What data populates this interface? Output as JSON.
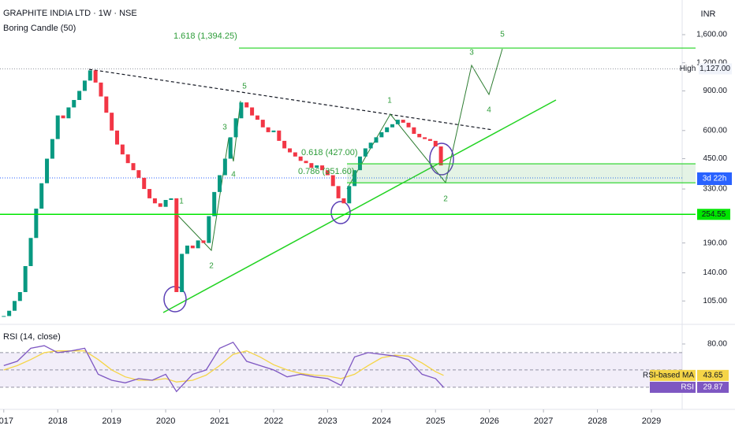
{
  "chart_data": [
    {
      "type": "candlestick",
      "title": "GRAPHITE INDIA LTD · 1W · NSE",
      "subtitle": "Boring Candle (50)",
      "currency": "INR",
      "up_color": "#089981",
      "down_color": "#f23645",
      "log": true,
      "x": [
        2017.0,
        2017.1,
        2017.2,
        2017.3,
        2017.4,
        2017.5,
        2017.6,
        2017.7,
        2017.8,
        2017.9,
        2018.0,
        2018.1,
        2018.2,
        2018.3,
        2018.4,
        2018.5,
        2018.6,
        2018.7,
        2018.8,
        2018.9,
        2019.0,
        2019.1,
        2019.2,
        2019.3,
        2019.4,
        2019.5,
        2019.6,
        2019.7,
        2019.8,
        2019.9,
        2020.0,
        2020.1,
        2020.2,
        2020.3,
        2020.4,
        2020.5,
        2020.6,
        2020.7,
        2020.8,
        2020.9,
        2021.0,
        2021.1,
        2021.2,
        2021.3,
        2021.4,
        2021.5,
        2021.6,
        2021.7,
        2021.8,
        2021.9,
        2022.0,
        2022.1,
        2022.2,
        2022.3,
        2022.4,
        2022.5,
        2022.6,
        2022.7,
        2022.8,
        2022.9,
        2023.0,
        2023.1,
        2023.2,
        2023.3,
        2023.4,
        2023.5,
        2023.6,
        2023.7,
        2023.8,
        2023.9,
        2024.0,
        2024.1,
        2024.2,
        2024.3,
        2024.4,
        2024.5,
        2024.6,
        2024.7,
        2024.8,
        2024.9,
        2025.0,
        2025.1
      ],
      "values": [
        90,
        95,
        105,
        115,
        150,
        200,
        270,
        350,
        450,
        550,
        700,
        680,
        760,
        820,
        900,
        1000,
        1110,
        980,
        850,
        720,
        600,
        520,
        470,
        430,
        400,
        370,
        330,
        300,
        285,
        275,
        295,
        300,
        115,
        170,
        185,
        180,
        195,
        190,
        250,
        320,
        380,
        450,
        560,
        680,
        800,
        760,
        700,
        670,
        620,
        590,
        600,
        540,
        500,
        480,
        460,
        440,
        430,
        410,
        420,
        400,
        380,
        340,
        300,
        285,
        340,
        400,
        460,
        500,
        530,
        560,
        590,
        620,
        640,
        670,
        650,
        620,
        580,
        560,
        550,
        540,
        510,
        420
      ],
      "xlim": [
        2016.93,
        2029.57
      ],
      "xticks": [
        2017,
        2018,
        2019,
        2020,
        2021,
        2022,
        2023,
        2024,
        2025,
        2026,
        2027,
        2028,
        2029
      ],
      "ylim": [
        84,
        2280
      ],
      "yticks": [
        {
          "value": 1600,
          "label": "1,600.00"
        },
        {
          "value": 1200,
          "label": "1,200.00"
        },
        {
          "value": 900,
          "label": "900.00"
        },
        {
          "value": 600,
          "label": "600.00"
        },
        {
          "value": 450,
          "label": "450.00"
        },
        {
          "value": 330,
          "label": "330.00"
        },
        {
          "value": 190,
          "label": "190.00"
        },
        {
          "value": 140,
          "label": "140.00"
        },
        {
          "value": 105,
          "label": "105.00"
        }
      ],
      "high": {
        "name": "High",
        "value": 1127,
        "label": "1,127.00"
      },
      "support": {
        "value": 254.55,
        "color": "#00e600"
      },
      "countdown": "3d 22h",
      "fib_levels": [
        {
          "value": 1394.25,
          "label": "1.618 (1,394.25)"
        },
        {
          "value": 427,
          "label": "0.618 (427.00)"
        },
        {
          "value": 351.6,
          "label": "0.786 (351.60)"
        }
      ],
      "waves": [
        "1",
        "2",
        "3",
        "4",
        "5",
        "1",
        "2",
        "3",
        "4",
        "5"
      ]
    },
    {
      "type": "line",
      "title": "RSI (14, close)",
      "x": [
        2017.0,
        2017.25,
        2017.5,
        2017.75,
        2018.0,
        2018.25,
        2018.5,
        2018.75,
        2019.0,
        2019.25,
        2019.5,
        2019.75,
        2020.0,
        2020.2,
        2020.5,
        2020.75,
        2021.0,
        2021.25,
        2021.5,
        2021.75,
        2022.0,
        2022.25,
        2022.5,
        2022.75,
        2023.0,
        2023.25,
        2023.5,
        2023.75,
        2024.0,
        2024.25,
        2024.5,
        2024.75,
        2025.0,
        2025.15
      ],
      "series": [
        {
          "name": "RSI",
          "color": "#7e57c2",
          "values": [
            55,
            60,
            75,
            78,
            70,
            72,
            75,
            45,
            38,
            35,
            40,
            38,
            45,
            25,
            45,
            50,
            75,
            82,
            60,
            55,
            50,
            42,
            45,
            42,
            40,
            32,
            65,
            70,
            68,
            66,
            62,
            45,
            40,
            29.87
          ]
        },
        {
          "name": "RSI-based MA",
          "color": "#f5d547",
          "values": [
            50,
            55,
            62,
            70,
            72,
            72,
            72,
            62,
            50,
            42,
            38,
            38,
            40,
            36,
            38,
            44,
            55,
            68,
            72,
            65,
            56,
            50,
            46,
            44,
            43,
            40,
            45,
            55,
            64,
            67,
            66,
            58,
            48,
            43.65
          ]
        }
      ],
      "ylim": [
        18,
        100
      ],
      "yticks": [
        {
          "value": 80,
          "label": "80.00"
        }
      ],
      "levels": [
        30,
        50,
        70
      ]
    }
  ]
}
